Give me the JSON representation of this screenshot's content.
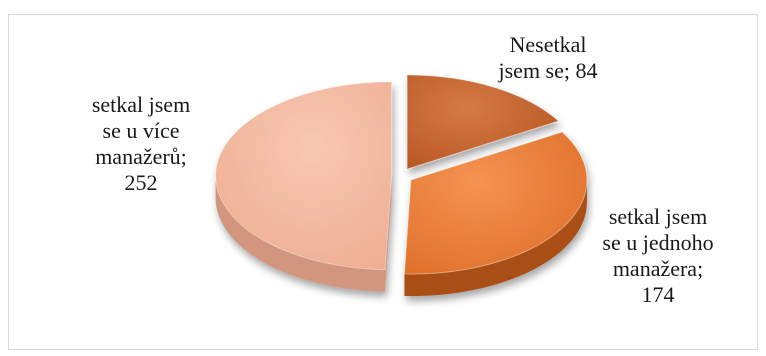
{
  "chart_data": {
    "type": "pie",
    "style": "3d-exploded",
    "categories": [
      "Nesetkal jsem se",
      "setkal jsem se u jednoho manažera",
      "setkal jsem se u více manažerů"
    ],
    "values": [
      84,
      174,
      252
    ],
    "labels": [
      [
        "Nesetkal",
        "jsem se; 84"
      ],
      [
        "setkal jsem",
        "se u jednoho",
        "manažera;",
        "174"
      ],
      [
        "setkal jsem",
        "se u více",
        "manažerů;",
        "252"
      ]
    ],
    "colors": [
      "#c5622a",
      "#ed7d31",
      "#f4b9a0"
    ],
    "side_colors": [
      "#8e3f15",
      "#a94f18",
      "#d1967d"
    ],
    "title": "",
    "legend": "none"
  }
}
